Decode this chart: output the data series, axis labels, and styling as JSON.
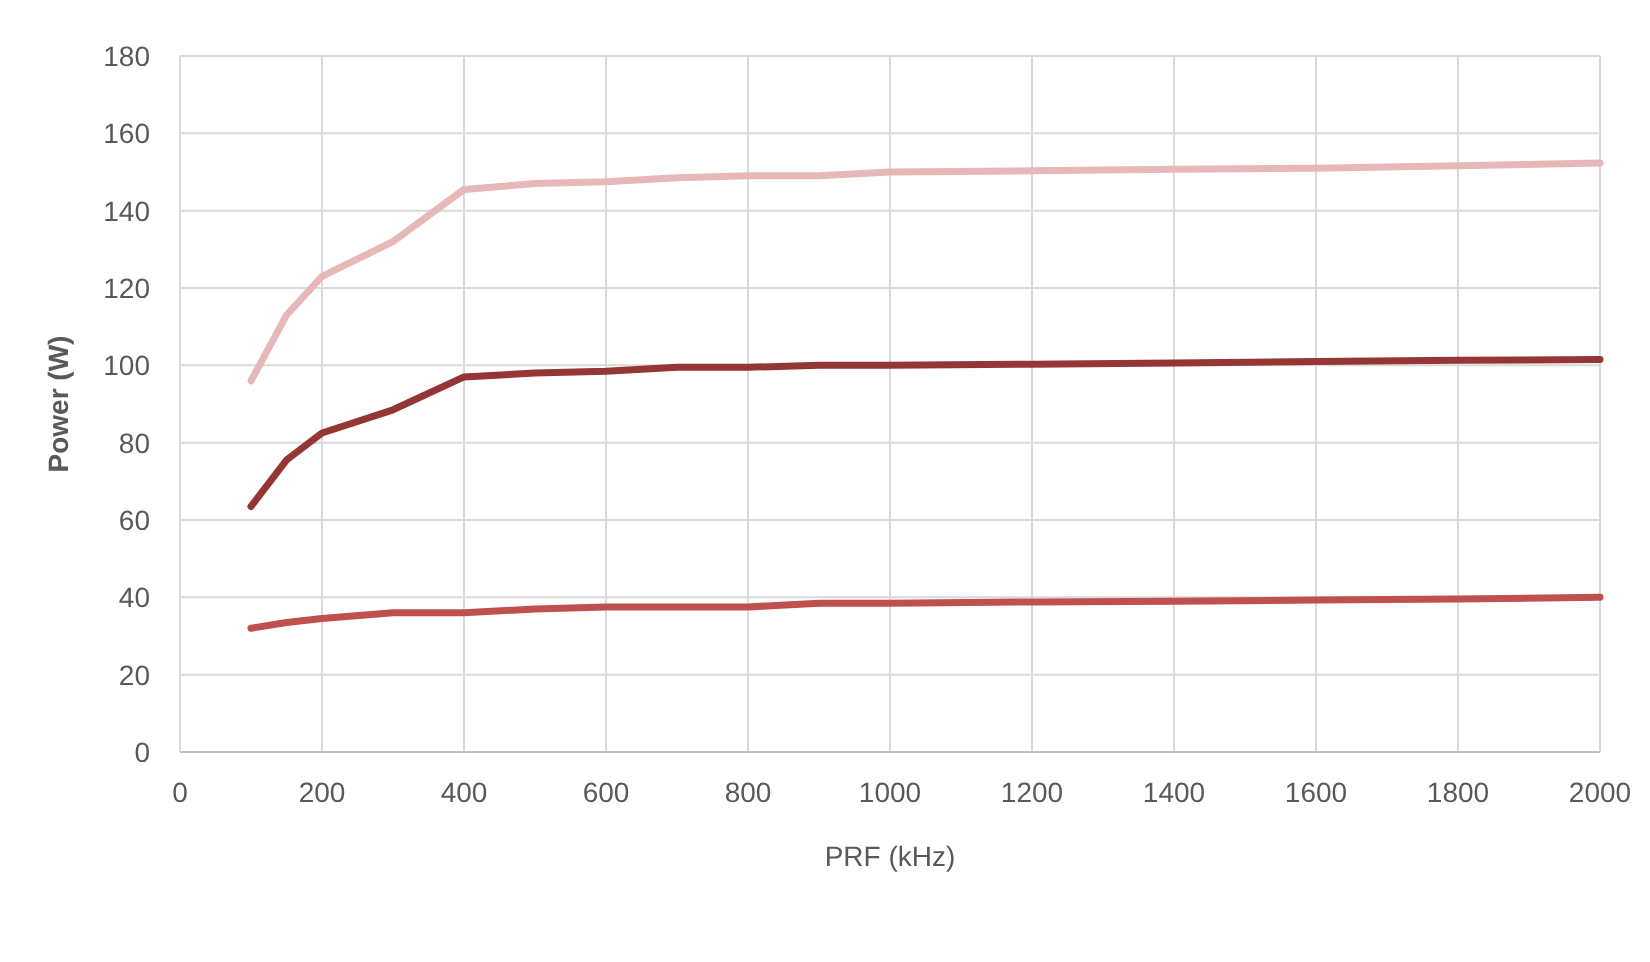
{
  "chart_data": {
    "type": "line",
    "xlabel": "PRF (kHz)",
    "ylabel": "Power (W)",
    "x": [
      100,
      150,
      200,
      300,
      400,
      500,
      600,
      700,
      800,
      900,
      1000,
      1200,
      1400,
      1600,
      1800,
      2000
    ],
    "series": [
      {
        "color": "#943634",
        "values": [
          63.5,
          75.5,
          82.5,
          88.5,
          97,
          98,
          98.5,
          99.5,
          99.5,
          100,
          100,
          100.3,
          100.6,
          101,
          101.3,
          101.5
        ]
      },
      {
        "color": "#c0504d",
        "values": [
          32,
          33.5,
          34.5,
          36,
          36,
          37,
          37.5,
          37.5,
          37.5,
          38.5,
          38.5,
          38.8,
          39,
          39.3,
          39.6,
          40
        ]
      },
      {
        "color": "#e6b9b8",
        "values": [
          96,
          113,
          123,
          132,
          145.5,
          147,
          147.5,
          148.5,
          149,
          149,
          150,
          150.3,
          150.7,
          151,
          151.6,
          152.3
        ]
      }
    ],
    "xlim": [
      0,
      2000
    ],
    "xticks": [
      0,
      200,
      400,
      600,
      800,
      1000,
      1200,
      1400,
      1600,
      1800,
      2000
    ],
    "ylim": [
      0,
      180
    ],
    "yticks": [
      0,
      20,
      40,
      60,
      80,
      100,
      120,
      140,
      160,
      180
    ],
    "grid": true,
    "marker": "none",
    "line_style": "solid"
  }
}
